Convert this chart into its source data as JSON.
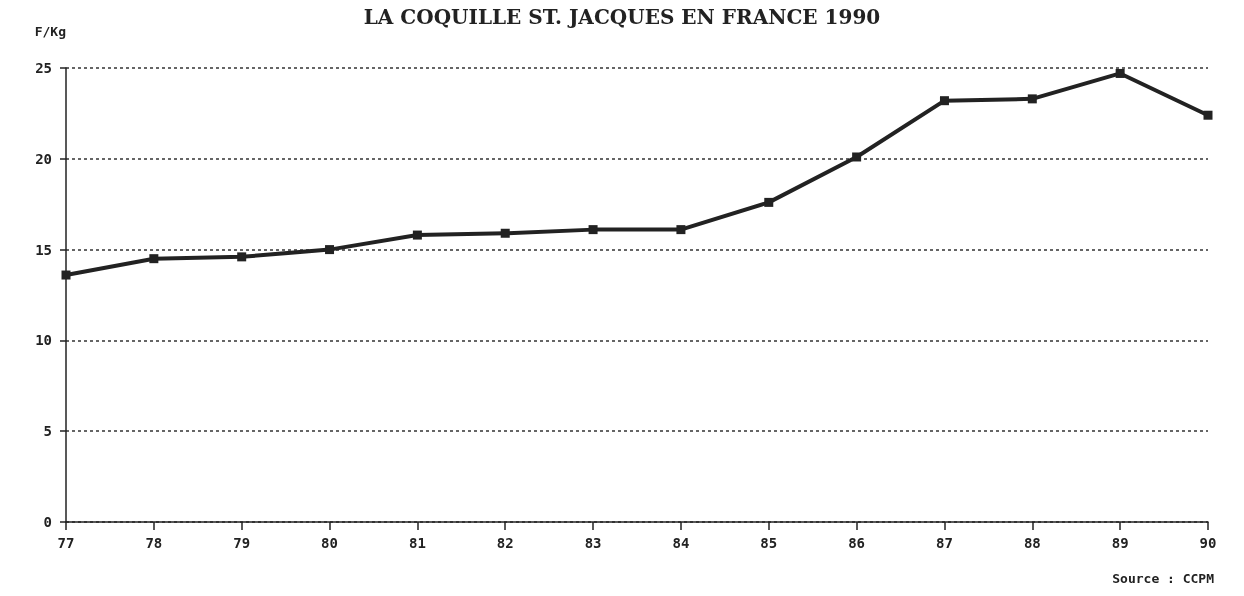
{
  "chart_data": {
    "type": "line",
    "title": "LA COQUILLE ST. JACQUES EN FRANCE 1990",
    "ylabel": "F/Kg",
    "categories": [
      "77",
      "78",
      "79",
      "80",
      "81",
      "82",
      "83",
      "84",
      "85",
      "86",
      "87",
      "88",
      "89",
      "90"
    ],
    "series": [
      {
        "color": "#222222",
        "values": [
          13.6,
          14.5,
          14.6,
          15.0,
          15.8,
          15.9,
          16.1,
          16.1,
          17.6,
          20.1,
          23.2,
          23.3,
          24.7,
          22.4
        ]
      }
    ],
    "ylim": [
      0,
      25
    ],
    "yticks": [
      0,
      5,
      10,
      15,
      20,
      25
    ],
    "grid": "y",
    "marker": "square",
    "line_style": "solid",
    "annotations": [
      "Source : CCPM"
    ]
  }
}
